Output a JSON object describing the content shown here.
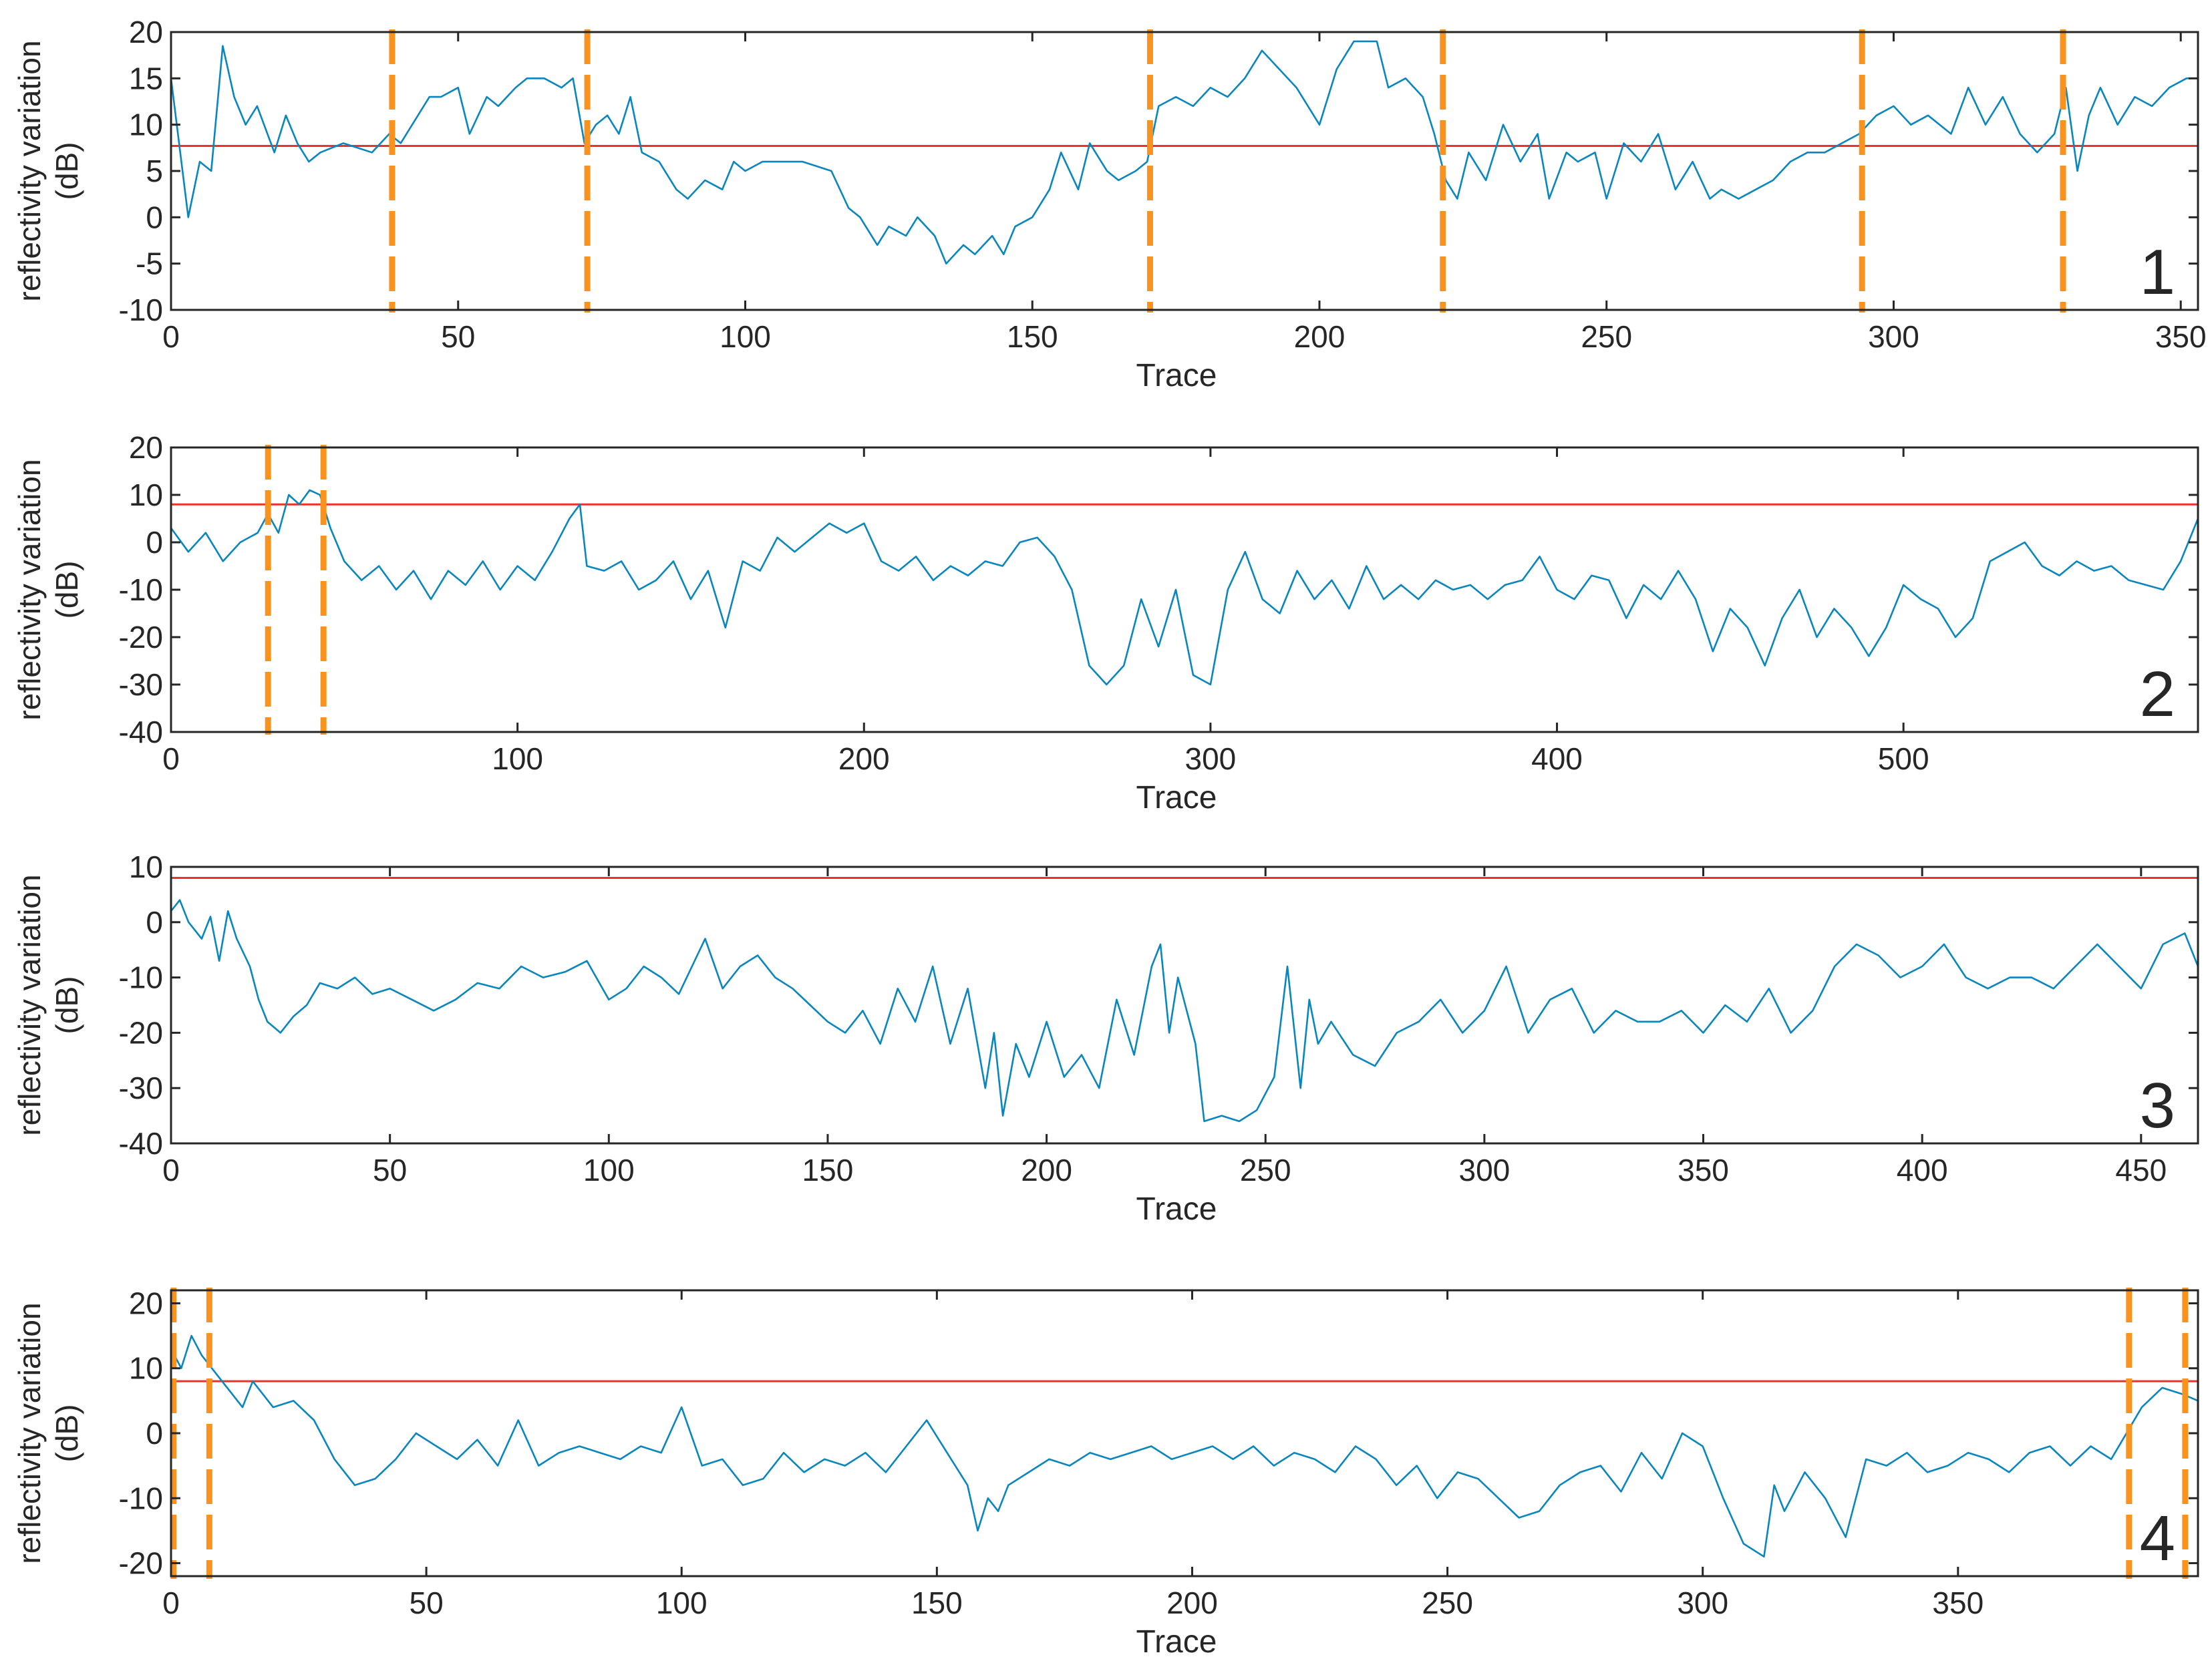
{
  "style": {
    "series_color": "#0a86bf",
    "threshold_color": "#e8322b",
    "marker_color": "#f7931e"
  },
  "chart_data": [
    {
      "type": "line",
      "panel_label": "1",
      "xlabel": "Trace",
      "ylabel": "reflectivity variation (dB)",
      "ylabel_lines": [
        "reflectivity variation",
        "(dB)"
      ],
      "xlim": [
        0,
        353
      ],
      "ylim": [
        -10,
        20
      ],
      "xticks": [
        0,
        50,
        100,
        150,
        200,
        250,
        300,
        350
      ],
      "yticks": [
        -10,
        -5,
        0,
        5,
        10,
        15,
        20
      ],
      "threshold": 7.7,
      "markers_x": [
        38.5,
        72.5,
        170.5,
        221.5,
        294.5,
        329.5
      ],
      "series": [
        {
          "x": [
            0,
            3,
            5,
            7,
            9,
            11,
            13,
            15,
            18,
            20,
            22,
            24,
            26,
            30,
            35,
            38,
            40,
            42,
            45,
            47,
            50,
            52,
            55,
            57,
            60,
            62,
            65,
            68,
            70,
            72,
            74,
            76,
            78,
            80,
            82,
            85,
            88,
            90,
            93,
            96,
            98,
            100,
            103,
            106,
            110,
            115,
            118,
            120,
            123,
            125,
            128,
            130,
            133,
            135,
            138,
            140,
            143,
            145,
            147,
            150,
            153,
            155,
            158,
            160,
            163,
            165,
            168,
            170,
            172,
            175,
            178,
            181,
            184,
            187,
            190,
            193,
            196,
            200,
            203,
            206,
            210,
            212,
            215,
            218,
            220,
            222,
            224,
            226,
            229,
            232,
            235,
            238,
            240,
            243,
            245,
            248,
            250,
            253,
            256,
            259,
            262,
            265,
            268,
            270,
            273,
            276,
            279,
            282,
            285,
            288,
            291,
            294,
            297,
            300,
            303,
            306,
            310,
            313,
            316,
            319,
            322,
            325,
            328,
            330,
            332,
            334,
            336,
            339,
            342,
            345,
            348,
            351,
            353
          ],
          "y": [
            15,
            0,
            6,
            5,
            18.5,
            13,
            10,
            12,
            7,
            11,
            8,
            6,
            7,
            8,
            7,
            9,
            8,
            10,
            13,
            13,
            14,
            9,
            13,
            12,
            14,
            15,
            15,
            14,
            15,
            8,
            10,
            11,
            9,
            13,
            7,
            6,
            3,
            2,
            4,
            3,
            6,
            5,
            6,
            6,
            6,
            5,
            1,
            0,
            -3,
            -1,
            -2,
            0,
            -2,
            -5,
            -3,
            -4,
            -2,
            -4,
            -1,
            0,
            3,
            7,
            3,
            8,
            5,
            4,
            5,
            6,
            12,
            13,
            12,
            14,
            13,
            15,
            18,
            16,
            14,
            10,
            16,
            19,
            19,
            14,
            15,
            13,
            9,
            4,
            2,
            7,
            4,
            10,
            6,
            9,
            2,
            7,
            6,
            7,
            2,
            8,
            6,
            9,
            3,
            6,
            2,
            3,
            2,
            3,
            4,
            6,
            7,
            7,
            8,
            9,
            11,
            12,
            10,
            11,
            9,
            14,
            10,
            13,
            9,
            7,
            9,
            14,
            5,
            11,
            14,
            10,
            13,
            12,
            14,
            15,
            15
          ]
        }
      ]
    },
    {
      "type": "line",
      "panel_label": "2",
      "xlabel": "Trace",
      "ylabel": "reflectivity variation (dB)",
      "ylabel_lines": [
        "reflectivity variation",
        "(dB)"
      ],
      "xlim": [
        0,
        585
      ],
      "ylim": [
        -40,
        20
      ],
      "xticks": [
        0,
        100,
        200,
        300,
        400,
        500
      ],
      "yticks": [
        -40,
        -30,
        -20,
        -10,
        0,
        10,
        20
      ],
      "threshold": 8,
      "markers_x": [
        28,
        44
      ],
      "series": [
        {
          "x": [
            0,
            5,
            10,
            15,
            20,
            25,
            28,
            31,
            34,
            37,
            40,
            43,
            46,
            50,
            55,
            60,
            65,
            70,
            75,
            80,
            85,
            90,
            95,
            100,
            105,
            110,
            115,
            118,
            120,
            125,
            130,
            135,
            140,
            145,
            150,
            155,
            160,
            165,
            170,
            175,
            180,
            185,
            190,
            195,
            200,
            205,
            210,
            215,
            220,
            225,
            230,
            235,
            240,
            245,
            250,
            255,
            260,
            265,
            270,
            275,
            280,
            285,
            290,
            295,
            300,
            305,
            310,
            315,
            320,
            325,
            330,
            335,
            340,
            345,
            350,
            355,
            360,
            365,
            370,
            375,
            380,
            385,
            390,
            395,
            400,
            405,
            410,
            415,
            420,
            425,
            430,
            435,
            440,
            445,
            450,
            455,
            460,
            465,
            470,
            475,
            480,
            485,
            490,
            495,
            500,
            505,
            510,
            515,
            520,
            525,
            530,
            535,
            540,
            545,
            550,
            555,
            560,
            565,
            570,
            575,
            580,
            585
          ],
          "y": [
            3,
            -2,
            2,
            -4,
            0,
            2,
            6,
            2,
            10,
            8,
            11,
            10,
            3,
            -4,
            -8,
            -5,
            -10,
            -6,
            -12,
            -6,
            -9,
            -4,
            -10,
            -5,
            -8,
            -2,
            5,
            8,
            -5,
            -6,
            -4,
            -10,
            -8,
            -4,
            -12,
            -6,
            -18,
            -4,
            -6,
            1,
            -2,
            1,
            4,
            2,
            4,
            -4,
            -6,
            -3,
            -8,
            -5,
            -7,
            -4,
            -5,
            0,
            1,
            -3,
            -10,
            -26,
            -30,
            -26,
            -12,
            -22,
            -10,
            -28,
            -30,
            -10,
            -2,
            -12,
            -15,
            -6,
            -12,
            -8,
            -14,
            -5,
            -12,
            -9,
            -12,
            -8,
            -10,
            -9,
            -12,
            -9,
            -8,
            -3,
            -10,
            -12,
            -7,
            -8,
            -16,
            -9,
            -12,
            -6,
            -12,
            -23,
            -14,
            -18,
            -26,
            -16,
            -10,
            -20,
            -14,
            -18,
            -24,
            -18,
            -9,
            -12,
            -14,
            -20,
            -16,
            -4,
            -2,
            0,
            -5,
            -7,
            -4,
            -6,
            -5,
            -8,
            -9,
            -10,
            -4,
            5
          ]
        }
      ]
    },
    {
      "type": "line",
      "panel_label": "3",
      "xlabel": "Trace",
      "ylabel": "reflectivity variation (dB)",
      "ylabel_lines": [
        "reflectivity variation",
        "(dB)"
      ],
      "xlim": [
        0,
        463
      ],
      "ylim": [
        -40,
        10
      ],
      "xticks": [
        0,
        50,
        100,
        150,
        200,
        250,
        300,
        350,
        400,
        450
      ],
      "yticks": [
        -40,
        -30,
        -20,
        -10,
        0,
        10
      ],
      "threshold": 8,
      "markers_x": [],
      "series": [
        {
          "x": [
            0,
            2,
            4,
            7,
            9,
            11,
            13,
            15,
            18,
            20,
            22,
            25,
            28,
            31,
            34,
            38,
            42,
            46,
            50,
            55,
            60,
            65,
            70,
            75,
            80,
            85,
            90,
            95,
            100,
            104,
            108,
            112,
            116,
            119,
            122,
            126,
            130,
            134,
            138,
            142,
            146,
            150,
            154,
            158,
            162,
            166,
            170,
            174,
            178,
            182,
            186,
            188,
            190,
            193,
            196,
            200,
            204,
            208,
            212,
            216,
            220,
            224,
            226,
            228,
            230,
            232,
            234,
            236,
            240,
            244,
            248,
            252,
            255,
            258,
            260,
            262,
            265,
            270,
            275,
            280,
            285,
            290,
            295,
            300,
            305,
            310,
            315,
            320,
            325,
            330,
            335,
            340,
            345,
            350,
            355,
            360,
            365,
            370,
            375,
            380,
            385,
            390,
            395,
            400,
            405,
            410,
            415,
            420,
            425,
            430,
            435,
            440,
            445,
            450,
            455,
            460,
            463
          ],
          "y": [
            2,
            4,
            0,
            -3,
            1,
            -7,
            2,
            -3,
            -8,
            -14,
            -18,
            -20,
            -17,
            -15,
            -11,
            -12,
            -10,
            -13,
            -12,
            -14,
            -16,
            -14,
            -11,
            -12,
            -8,
            -10,
            -9,
            -7,
            -14,
            -12,
            -8,
            -10,
            -13,
            -8,
            -3,
            -12,
            -8,
            -6,
            -10,
            -12,
            -15,
            -18,
            -20,
            -16,
            -22,
            -12,
            -18,
            -8,
            -22,
            -12,
            -30,
            -20,
            -35,
            -22,
            -28,
            -18,
            -28,
            -24,
            -30,
            -14,
            -24,
            -8,
            -4,
            -20,
            -10,
            -16,
            -22,
            -36,
            -35,
            -36,
            -34,
            -28,
            -8,
            -30,
            -14,
            -22,
            -18,
            -24,
            -26,
            -20,
            -18,
            -14,
            -20,
            -16,
            -8,
            -20,
            -14,
            -12,
            -20,
            -16,
            -18,
            -18,
            -16,
            -20,
            -15,
            -18,
            -12,
            -20,
            -16,
            -8,
            -4,
            -6,
            -10,
            -8,
            -4,
            -10,
            -12,
            -10,
            -10,
            -12,
            -8,
            -4,
            -8,
            -12,
            -4,
            -2,
            -8
          ]
        }
      ]
    },
    {
      "type": "line",
      "panel_label": "4",
      "xlabel": "Trace",
      "ylabel": "reflectivity variation (dB)",
      "ylabel_lines": [
        "reflectivity variation",
        "(dB)"
      ],
      "xlim": [
        0,
        397
      ],
      "ylim": [
        -22,
        22
      ],
      "xticks": [
        0,
        50,
        100,
        150,
        200,
        250,
        300,
        350
      ],
      "yticks": [
        -20,
        -10,
        0,
        10,
        20
      ],
      "threshold": 8,
      "markers_x": [
        0.5,
        7.5,
        383.5,
        394.5
      ],
      "series": [
        {
          "x": [
            0,
            2,
            4,
            6,
            8,
            10,
            12,
            14,
            16,
            20,
            24,
            28,
            32,
            36,
            40,
            44,
            48,
            52,
            56,
            60,
            64,
            68,
            72,
            76,
            80,
            84,
            88,
            92,
            96,
            100,
            104,
            108,
            112,
            116,
            120,
            124,
            128,
            132,
            136,
            140,
            144,
            148,
            152,
            156,
            158,
            160,
            162,
            164,
            168,
            172,
            176,
            180,
            184,
            188,
            192,
            196,
            200,
            204,
            208,
            212,
            216,
            220,
            224,
            228,
            232,
            236,
            240,
            244,
            248,
            252,
            256,
            260,
            264,
            268,
            272,
            276,
            280,
            284,
            288,
            292,
            296,
            300,
            304,
            308,
            312,
            314,
            316,
            320,
            324,
            328,
            332,
            336,
            340,
            344,
            348,
            352,
            356,
            360,
            364,
            368,
            372,
            376,
            380,
            383,
            386,
            390,
            394,
            397
          ],
          "y": [
            13,
            10,
            15,
            12,
            10,
            8,
            6,
            4,
            8,
            4,
            5,
            2,
            -4,
            -8,
            -7,
            -4,
            0,
            -2,
            -4,
            -1,
            -5,
            2,
            -5,
            -3,
            -2,
            -3,
            -4,
            -2,
            -3,
            4,
            -5,
            -4,
            -8,
            -7,
            -3,
            -6,
            -4,
            -5,
            -3,
            -6,
            -2,
            2,
            -3,
            -8,
            -15,
            -10,
            -12,
            -8,
            -6,
            -4,
            -5,
            -3,
            -4,
            -3,
            -2,
            -4,
            -3,
            -2,
            -4,
            -2,
            -5,
            -3,
            -4,
            -6,
            -2,
            -4,
            -8,
            -5,
            -10,
            -6,
            -7,
            -10,
            -13,
            -12,
            -8,
            -6,
            -5,
            -9,
            -3,
            -7,
            0,
            -2,
            -10,
            -17,
            -19,
            -8,
            -12,
            -6,
            -10,
            -16,
            -4,
            -5,
            -3,
            -6,
            -5,
            -3,
            -4,
            -6,
            -3,
            -2,
            -5,
            -2,
            -4,
            0,
            4,
            7,
            6,
            5
          ]
        }
      ]
    }
  ]
}
